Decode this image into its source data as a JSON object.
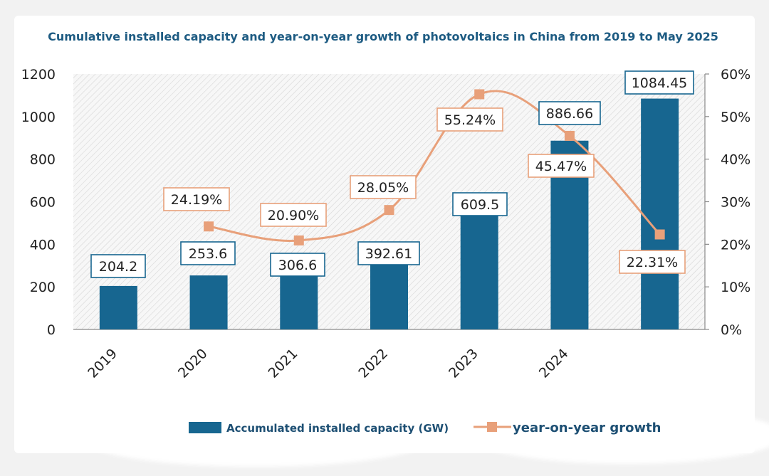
{
  "chart_data": {
    "type": "bar",
    "title": "Cumulative installed capacity and year-on-year growth of photovoltaics in China from 2019 to May 2025",
    "categories": [
      "2019",
      "2020",
      "2021",
      "2022",
      "2023",
      "2024",
      ""
    ],
    "y_left": {
      "min": 0,
      "max": 1200,
      "ticks": [
        "0",
        "200",
        "400",
        "600",
        "800",
        "1000",
        "1200"
      ]
    },
    "y_right": {
      "min": 0,
      "max": 60,
      "ticks": [
        "0%",
        "10%",
        "20%",
        "30%",
        "40%",
        "50%",
        "60%"
      ]
    },
    "series": [
      {
        "name": "Accumulated installed capacity (GW)",
        "kind": "bar",
        "axis": "left",
        "values": [
          204.2,
          253.6,
          306.6,
          392.61,
          609.5,
          886.66,
          1084.45
        ],
        "labels": [
          "204.2",
          "253.6",
          "306.6",
          "392.61",
          "609.5",
          "886.66",
          "1084.45"
        ],
        "color": "#176690"
      },
      {
        "name": "year-on-year growth",
        "kind": "line",
        "axis": "right",
        "values": [
          null,
          24.19,
          20.9,
          28.05,
          55.24,
          45.47,
          22.31
        ],
        "labels": [
          "",
          "24.19%",
          "20.90%",
          "28.05%",
          "55.24%",
          "45.47%",
          "22.31%"
        ],
        "color": "#e8a07a"
      }
    ],
    "grid": false,
    "legend_position": "bottom"
  }
}
